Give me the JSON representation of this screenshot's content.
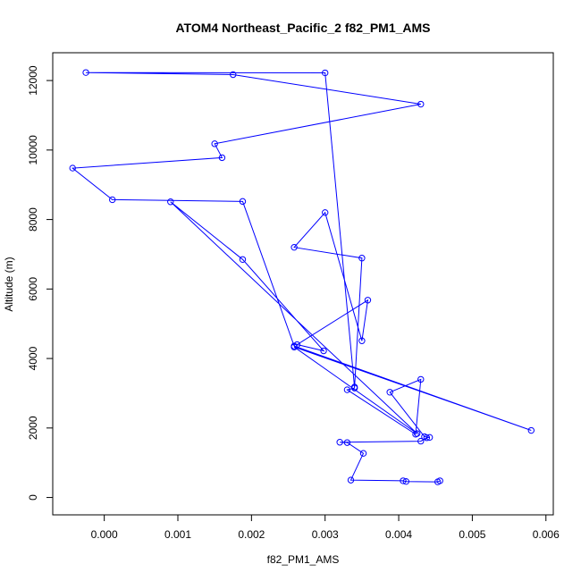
{
  "chart_data": {
    "type": "line",
    "title": "ATOM4 Northeast_Pacific_2 f82_PM1_AMS",
    "xlabel": "f82_PM1_AMS",
    "ylabel": "Altitude (m)",
    "xlim": [
      -0.0007,
      0.0061
    ],
    "ylim": [
      -500,
      12800
    ],
    "xticks": [
      {
        "value": 0.0,
        "label": "0.000"
      },
      {
        "value": 0.001,
        "label": "0.001"
      },
      {
        "value": 0.002,
        "label": "0.002"
      },
      {
        "value": 0.003,
        "label": "0.003"
      },
      {
        "value": 0.004,
        "label": "0.004"
      },
      {
        "value": 0.005,
        "label": "0.005"
      },
      {
        "value": 0.006,
        "label": "0.006"
      }
    ],
    "yticks": [
      {
        "value": 0,
        "label": "0"
      },
      {
        "value": 2000,
        "label": "2000"
      },
      {
        "value": 4000,
        "label": "4000"
      },
      {
        "value": 6000,
        "label": "6000"
      },
      {
        "value": 8000,
        "label": "8000"
      },
      {
        "value": 10000,
        "label": "10000"
      },
      {
        "value": 12000,
        "label": "12000"
      }
    ],
    "grid": false,
    "color": "#0000ff",
    "series": [
      {
        "x": [
          0.00456,
          0.00453,
          0.0041,
          0.00406,
          0.00335,
          0.00352,
          0.0033,
          0.0032,
          0.0043,
          0.00438,
          0.00442,
          0.00435,
          0.00388,
          0.0043,
          0.00423,
          0.0033,
          0.0034,
          0.0035,
          0.00258,
          0.003,
          0.0035,
          0.00358,
          0.00262,
          0.00298,
          0.00188,
          0.0009,
          0.00425,
          0.00258,
          0.0058,
          0.00258,
          0.00188,
          0.00011,
          -0.00043,
          0.0016,
          0.0015,
          0.0043,
          0.00175,
          -0.00025,
          0.003,
          0.0034
        ],
        "y": [
          480,
          450,
          460,
          480,
          500,
          1270,
          1580,
          1590,
          1620,
          1720,
          1730,
          1750,
          3030,
          3400,
          1820,
          3100,
          3150,
          6890,
          7200,
          8200,
          4510,
          5680,
          4400,
          4220,
          6850,
          8510,
          1840,
          4330,
          1930,
          4360,
          8520,
          8570,
          9480,
          9780,
          10180,
          11320,
          12170,
          12230,
          12220,
          3180
        ]
      }
    ]
  }
}
